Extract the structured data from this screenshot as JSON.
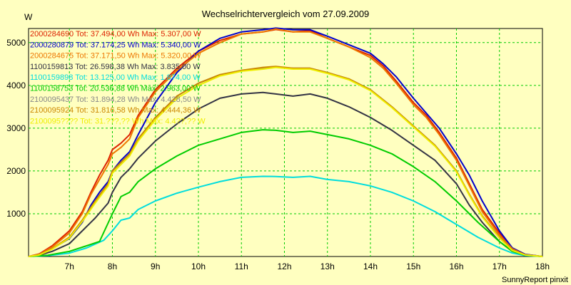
{
  "chart_data": {
    "type": "line",
    "title": "Wechselrichtervergleich vom 27.09.2009",
    "ylabel": "W",
    "xlabel": "",
    "footer": "SunnyReport pinxit",
    "x_ticks": [
      "7h",
      "8h",
      "9h",
      "10h",
      "11h",
      "12h",
      "13h",
      "14h",
      "15h",
      "16h",
      "17h",
      "18h"
    ],
    "y_ticks": [
      "1000",
      "2000",
      "3000",
      "4000",
      "5000"
    ],
    "xlim": [
      6.05,
      18.0
    ],
    "ylim": [
      0,
      5330
    ],
    "grid": true,
    "legend_position": "top-left inside",
    "series": [
      {
        "name": "2000284690 Tot: 37.494,00 Wh Max: 5.307,00 W",
        "color": "#dd2200",
        "x": [
          6.05,
          6.3,
          6.6,
          7.0,
          7.3,
          7.5,
          7.7,
          7.9,
          8.0,
          8.2,
          8.4,
          8.6,
          9.0,
          9.5,
          10.0,
          10.5,
          11.0,
          11.5,
          11.8,
          12.2,
          12.6,
          13.0,
          13.5,
          14.0,
          14.3,
          14.6,
          15.0,
          15.3,
          15.6,
          16.0,
          16.3,
          16.6,
          17.0,
          17.3,
          17.6,
          18.0
        ],
        "y": [
          0,
          60,
          250,
          600,
          1050,
          1500,
          1900,
          2250,
          2500,
          2650,
          2850,
          3300,
          3900,
          4400,
          4800,
          5050,
          5200,
          5250,
          5307,
          5250,
          5280,
          5100,
          4900,
          4700,
          4450,
          4100,
          3600,
          3300,
          2900,
          2300,
          1700,
          1100,
          550,
          200,
          50,
          0
        ]
      },
      {
        "name": "2000280879 Tot: 37.174,25 Wh Max: 5.340,00 W",
        "color": "#0000cc",
        "x": [
          6.05,
          6.3,
          6.6,
          7.0,
          7.3,
          7.5,
          7.7,
          7.9,
          8.0,
          8.2,
          8.4,
          8.6,
          9.0,
          9.5,
          10.0,
          10.5,
          11.0,
          11.5,
          11.8,
          12.2,
          12.6,
          13.0,
          13.5,
          14.0,
          14.3,
          14.6,
          15.0,
          15.3,
          15.6,
          16.0,
          16.3,
          16.6,
          17.0,
          17.3,
          17.6,
          18.0
        ],
        "y": [
          0,
          40,
          180,
          420,
          800,
          1200,
          1500,
          1750,
          2000,
          2250,
          2450,
          2850,
          3600,
          4300,
          4800,
          5100,
          5250,
          5300,
          5340,
          5300,
          5300,
          5150,
          4950,
          4750,
          4500,
          4200,
          3700,
          3350,
          3000,
          2400,
          1900,
          1300,
          600,
          200,
          50,
          0
        ]
      },
      {
        "name": "2000284675 Tot: 37.171,50 Wh Max: 5.320,00 W",
        "color": "#ee7700",
        "x": [
          6.05,
          6.3,
          6.6,
          7.0,
          7.3,
          7.5,
          7.7,
          7.9,
          8.0,
          8.2,
          8.4,
          8.6,
          9.0,
          9.5,
          10.0,
          10.5,
          11.0,
          11.5,
          11.8,
          12.2,
          12.6,
          13.0,
          13.5,
          14.0,
          14.3,
          14.6,
          15.0,
          15.3,
          15.6,
          16.0,
          16.3,
          16.6,
          17.0,
          17.3,
          17.6,
          18.0
        ],
        "y": [
          0,
          50,
          220,
          550,
          1000,
          1450,
          1800,
          2150,
          2400,
          2550,
          2750,
          3250,
          3850,
          4350,
          4750,
          5000,
          5200,
          5250,
          5320,
          5250,
          5250,
          5100,
          4900,
          4650,
          4400,
          4050,
          3550,
          3250,
          2850,
          2250,
          1650,
          1050,
          500,
          180,
          40,
          0
        ]
      },
      {
        "name": "1100159813 Tot: 26.598,38 Wh Max: 3.835,00 W",
        "color": "#333344",
        "x": [
          6.05,
          6.3,
          6.6,
          7.0,
          7.3,
          7.6,
          7.9,
          8.0,
          8.2,
          8.4,
          8.6,
          9.0,
          9.5,
          10.0,
          10.5,
          11.0,
          11.5,
          11.8,
          12.2,
          12.6,
          13.0,
          13.5,
          14.0,
          14.5,
          15.0,
          15.5,
          16.0,
          16.3,
          16.6,
          17.0,
          17.3,
          17.6,
          18.0
        ],
        "y": [
          0,
          30,
          120,
          300,
          600,
          900,
          1250,
          1500,
          1850,
          2050,
          2300,
          2700,
          3100,
          3450,
          3700,
          3800,
          3835,
          3800,
          3750,
          3800,
          3700,
          3500,
          3250,
          2950,
          2600,
          2250,
          1700,
          1200,
          800,
          350,
          120,
          30,
          0
        ]
      },
      {
        "name": "1100159898 Tot: 13.125,00 Wh Max: 1.874,00 W",
        "color": "#00dddd",
        "x": [
          6.05,
          6.5,
          7.0,
          7.4,
          7.8,
          8.0,
          8.2,
          8.4,
          8.6,
          9.0,
          9.5,
          10.0,
          10.5,
          11.0,
          11.5,
          11.8,
          12.2,
          12.6,
          13.0,
          13.5,
          14.0,
          14.5,
          15.0,
          15.5,
          16.0,
          16.5,
          17.0,
          17.3,
          17.6,
          18.0
        ],
        "y": [
          0,
          20,
          80,
          200,
          380,
          600,
          850,
          900,
          1100,
          1300,
          1480,
          1620,
          1750,
          1850,
          1874,
          1870,
          1850,
          1874,
          1800,
          1750,
          1650,
          1500,
          1300,
          1050,
          750,
          450,
          200,
          80,
          20,
          0
        ]
      },
      {
        "name": "1100158753 Tot: 20.536,88 Wh Max: 2.963,00 W",
        "color": "#00cc00",
        "x": [
          6.05,
          6.5,
          7.0,
          7.4,
          7.7,
          8.0,
          8.2,
          8.4,
          8.6,
          9.0,
          9.5,
          10.0,
          10.5,
          11.0,
          11.5,
          11.8,
          12.2,
          12.6,
          13.0,
          13.5,
          14.0,
          14.5,
          15.0,
          15.5,
          16.0,
          16.5,
          17.0,
          17.3,
          17.6,
          18.0
        ],
        "y": [
          0,
          30,
          120,
          250,
          350,
          1000,
          1400,
          1500,
          1750,
          2050,
          2350,
          2600,
          2750,
          2900,
          2963,
          2950,
          2900,
          2930,
          2850,
          2750,
          2600,
          2400,
          2100,
          1750,
          1300,
          800,
          350,
          120,
          30,
          0
        ]
      },
      {
        "name": "2100095437 Tot: 31.894,28 Wh Max: 4.428,50 W",
        "color": "#888888",
        "x": [
          6.05,
          6.3,
          6.6,
          7.0,
          7.3,
          7.6,
          7.9,
          8.0,
          8.2,
          8.4,
          8.6,
          9.0,
          9.5,
          10.0,
          10.5,
          11.0,
          11.5,
          11.8,
          12.2,
          12.6,
          13.0,
          13.5,
          14.0,
          14.5,
          15.0,
          15.5,
          16.0,
          16.3,
          16.6,
          17.0,
          17.3,
          17.6,
          18.0
        ],
        "y": [
          0,
          40,
          180,
          450,
          850,
          1300,
          1700,
          2000,
          2200,
          2400,
          2750,
          3250,
          3750,
          4050,
          4250,
          4350,
          4400,
          4428,
          4400,
          4400,
          4300,
          4150,
          3900,
          3500,
          3050,
          2600,
          2000,
          1450,
          950,
          450,
          150,
          40,
          0
        ]
      },
      {
        "name": "2100095924 Tot: 31.816,58 Wh Max: 4.444,36 W",
        "color": "#cc8800",
        "x": [
          6.05,
          6.3,
          6.6,
          7.0,
          7.3,
          7.6,
          7.9,
          8.0,
          8.2,
          8.4,
          8.6,
          9.0,
          9.5,
          10.0,
          10.5,
          11.0,
          11.5,
          11.8,
          12.2,
          12.6,
          13.0,
          13.5,
          14.0,
          14.5,
          15.0,
          15.5,
          16.0,
          16.3,
          16.6,
          17.0,
          17.3,
          17.6,
          18.0
        ],
        "y": [
          0,
          40,
          180,
          450,
          850,
          1300,
          1700,
          2000,
          2200,
          2400,
          2750,
          3250,
          3750,
          4050,
          4250,
          4350,
          4420,
          4444,
          4400,
          4400,
          4300,
          4150,
          3900,
          3500,
          3050,
          2600,
          2000,
          1450,
          950,
          450,
          150,
          40,
          0
        ]
      },
      {
        "name": "2100095???? Tot: 31.???,?? Wh Max: 4.4??,?? W",
        "color": "#eeee00",
        "x": [
          6.05,
          6.3,
          6.6,
          7.0,
          7.3,
          7.6,
          7.9,
          8.0,
          8.2,
          8.4,
          8.6,
          9.0,
          9.5,
          10.0,
          10.5,
          11.0,
          11.5,
          11.8,
          12.2,
          12.6,
          13.0,
          13.5,
          14.0,
          14.5,
          15.0,
          15.5,
          16.0,
          16.3,
          16.6,
          17.0,
          17.3,
          17.6,
          18.0
        ],
        "y": [
          0,
          35,
          170,
          430,
          820,
          1250,
          1650,
          1950,
          2150,
          2350,
          2700,
          3200,
          3700,
          4000,
          4220,
          4330,
          4380,
          4420,
          4380,
          4380,
          4280,
          4130,
          3880,
          3480,
          3030,
          2580,
          1980,
          1430,
          930,
          430,
          140,
          35,
          0
        ]
      }
    ]
  }
}
